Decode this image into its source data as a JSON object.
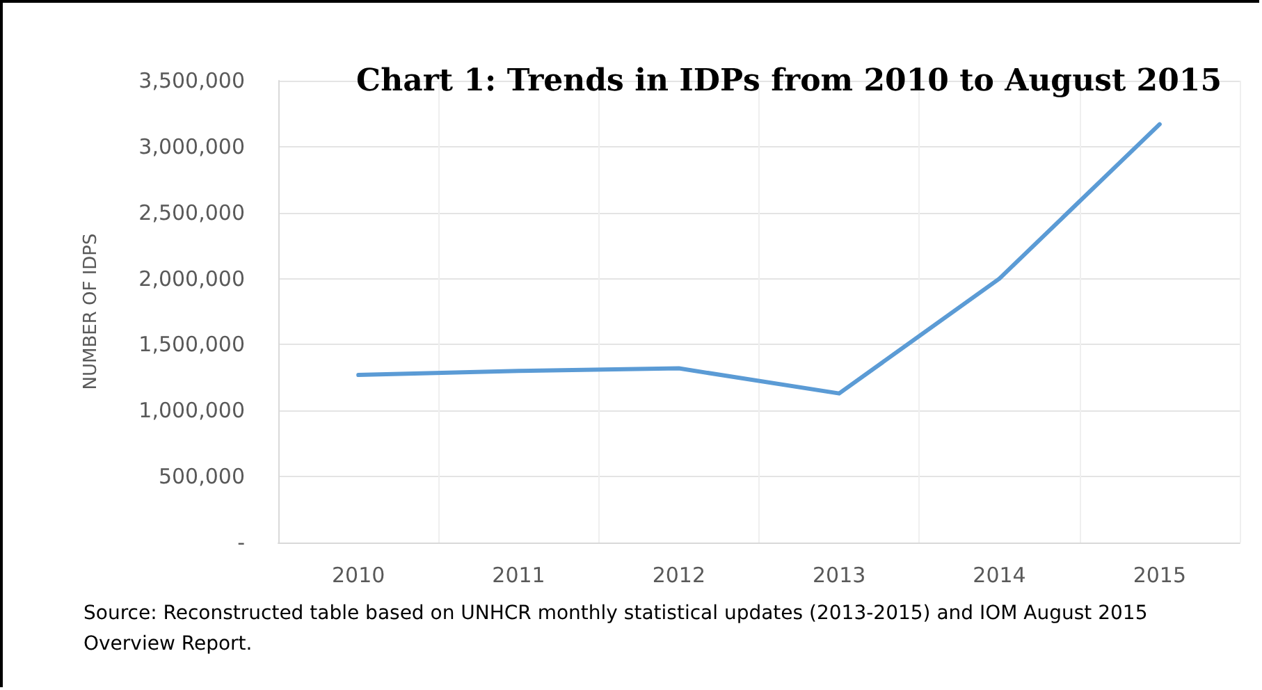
{
  "chart_data": {
    "type": "line",
    "title": "Chart 1: Trends in IDPs from 2010 to August 2015",
    "ylabel": "NUMBER OF IDPS",
    "categories": [
      "2010",
      "2011",
      "2012",
      "2013",
      "2014",
      "2015"
    ],
    "series": [
      {
        "color": "#5b9bd5",
        "values": [
          1270000,
          1300000,
          1320000,
          1130000,
          2000000,
          3170000
        ]
      }
    ],
    "ylim": [
      0,
      3500000
    ],
    "yticks": [
      {
        "value": 0,
        "label": "-"
      },
      {
        "value": 500000,
        "label": "500,000"
      },
      {
        "value": 1000000,
        "label": "1,000,000"
      },
      {
        "value": 1500000,
        "label": "1,500,000"
      },
      {
        "value": 2000000,
        "label": "2,000,000"
      },
      {
        "value": 2500000,
        "label": "2,500,000"
      },
      {
        "value": 3000000,
        "label": "3,000,000"
      },
      {
        "value": 3500000,
        "label": "3,500,000"
      }
    ],
    "grid": true,
    "marker": "none",
    "line_style": "solid",
    "annotations": [
      "Source: Reconstructed table based on UNHCR monthly statistical updates (2013-2015) and IOM August 2015 Overview Report."
    ]
  }
}
